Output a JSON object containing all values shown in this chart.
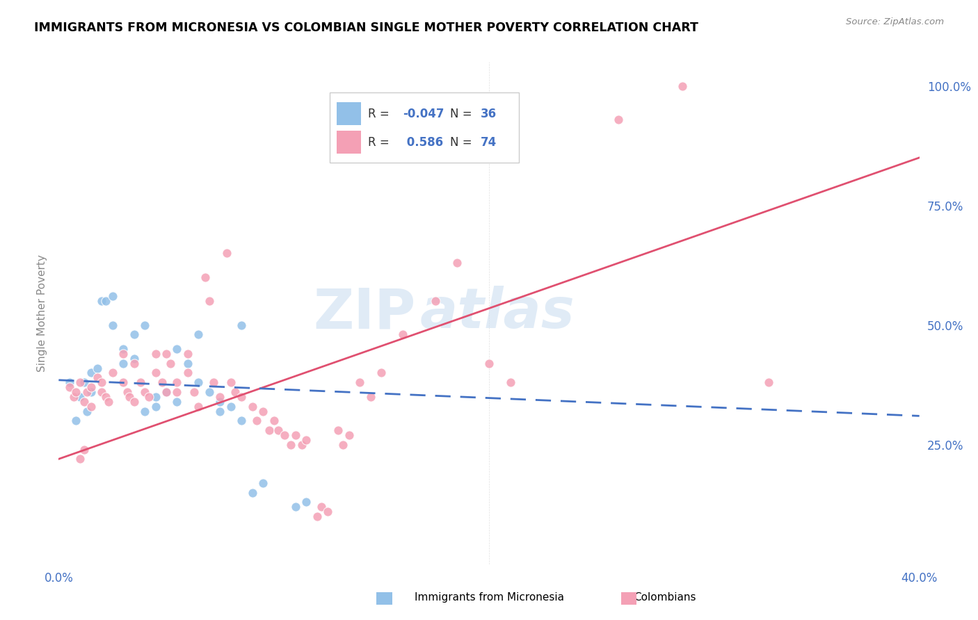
{
  "title": "IMMIGRANTS FROM MICRONESIA VS COLOMBIAN SINGLE MOTHER POVERTY CORRELATION CHART",
  "source": "Source: ZipAtlas.com",
  "ylabel": "Single Mother Poverty",
  "blue_color": "#92C0E8",
  "pink_color": "#F4A0B5",
  "trendline_blue": "#4472C4",
  "trendline_pink": "#E05070",
  "watermark_zip": "ZIP",
  "watermark_atlas": "atlas",
  "blue_scatter": [
    [
      0.5,
      38
    ],
    [
      1.0,
      35
    ],
    [
      1.2,
      38
    ],
    [
      1.5,
      36
    ],
    [
      1.5,
      40
    ],
    [
      1.8,
      41
    ],
    [
      2.0,
      55
    ],
    [
      2.2,
      55
    ],
    [
      2.5,
      56
    ],
    [
      2.5,
      50
    ],
    [
      3.0,
      45
    ],
    [
      3.0,
      42
    ],
    [
      3.5,
      48
    ],
    [
      3.5,
      43
    ],
    [
      4.0,
      50
    ],
    [
      4.0,
      32
    ],
    [
      4.5,
      33
    ],
    [
      4.5,
      35
    ],
    [
      5.0,
      36
    ],
    [
      5.5,
      34
    ],
    [
      5.5,
      45
    ],
    [
      6.0,
      42
    ],
    [
      6.5,
      48
    ],
    [
      6.5,
      38
    ],
    [
      7.0,
      36
    ],
    [
      7.5,
      34
    ],
    [
      7.5,
      32
    ],
    [
      8.0,
      33
    ],
    [
      8.5,
      30
    ],
    [
      8.5,
      50
    ],
    [
      9.0,
      15
    ],
    [
      9.5,
      17
    ],
    [
      11.0,
      12
    ],
    [
      11.5,
      13
    ],
    [
      0.8,
      30
    ],
    [
      1.3,
      32
    ]
  ],
  "pink_scatter": [
    [
      0.5,
      37
    ],
    [
      0.7,
      35
    ],
    [
      0.8,
      36
    ],
    [
      1.0,
      38
    ],
    [
      1.2,
      34
    ],
    [
      1.3,
      36
    ],
    [
      1.5,
      33
    ],
    [
      1.5,
      37
    ],
    [
      1.8,
      39
    ],
    [
      2.0,
      38
    ],
    [
      2.0,
      36
    ],
    [
      2.2,
      35
    ],
    [
      2.3,
      34
    ],
    [
      2.5,
      40
    ],
    [
      3.0,
      44
    ],
    [
      3.0,
      38
    ],
    [
      3.2,
      36
    ],
    [
      3.3,
      35
    ],
    [
      3.5,
      34
    ],
    [
      3.5,
      42
    ],
    [
      3.8,
      38
    ],
    [
      4.0,
      36
    ],
    [
      4.2,
      35
    ],
    [
      4.5,
      44
    ],
    [
      4.5,
      40
    ],
    [
      4.8,
      38
    ],
    [
      5.0,
      36
    ],
    [
      5.0,
      44
    ],
    [
      5.2,
      42
    ],
    [
      5.5,
      38
    ],
    [
      5.5,
      36
    ],
    [
      6.0,
      44
    ],
    [
      6.0,
      40
    ],
    [
      6.3,
      36
    ],
    [
      6.5,
      33
    ],
    [
      6.8,
      60
    ],
    [
      7.0,
      55
    ],
    [
      7.2,
      38
    ],
    [
      7.5,
      35
    ],
    [
      7.8,
      65
    ],
    [
      8.0,
      38
    ],
    [
      8.2,
      36
    ],
    [
      8.5,
      35
    ],
    [
      9.0,
      33
    ],
    [
      9.2,
      30
    ],
    [
      9.5,
      32
    ],
    [
      9.8,
      28
    ],
    [
      10.0,
      30
    ],
    [
      10.2,
      28
    ],
    [
      10.5,
      27
    ],
    [
      10.8,
      25
    ],
    [
      11.0,
      27
    ],
    [
      11.3,
      25
    ],
    [
      11.5,
      26
    ],
    [
      12.0,
      10
    ],
    [
      12.2,
      12
    ],
    [
      12.5,
      11
    ],
    [
      13.0,
      28
    ],
    [
      13.2,
      25
    ],
    [
      13.5,
      27
    ],
    [
      14.0,
      38
    ],
    [
      14.5,
      35
    ],
    [
      15.0,
      40
    ],
    [
      16.0,
      48
    ],
    [
      17.5,
      55
    ],
    [
      18.5,
      63
    ],
    [
      20.0,
      42
    ],
    [
      21.0,
      38
    ],
    [
      29.0,
      100
    ],
    [
      26.0,
      93
    ],
    [
      33.0,
      38
    ],
    [
      1.0,
      22
    ],
    [
      1.2,
      24
    ]
  ],
  "blue_trend_y0": 38.5,
  "blue_trend_y1": 31.0,
  "pink_trend_y0": 22.0,
  "pink_trend_y1": 85.0,
  "xlim": [
    0.0,
    40.0
  ],
  "ylim": [
    0.0,
    105.0
  ],
  "xtick_vals": [
    0.0,
    5.0,
    10.0,
    15.0,
    20.0,
    25.0,
    30.0,
    35.0,
    40.0
  ],
  "xtick_labels": [
    "0.0%",
    "",
    "",
    "",
    "",
    "",
    "",
    "",
    "40.0%"
  ],
  "ytick_vals": [
    0.0,
    25.0,
    50.0,
    75.0,
    100.0
  ],
  "ytick_labels": [
    "",
    "25.0%",
    "50.0%",
    "75.0%",
    "100.0%"
  ]
}
